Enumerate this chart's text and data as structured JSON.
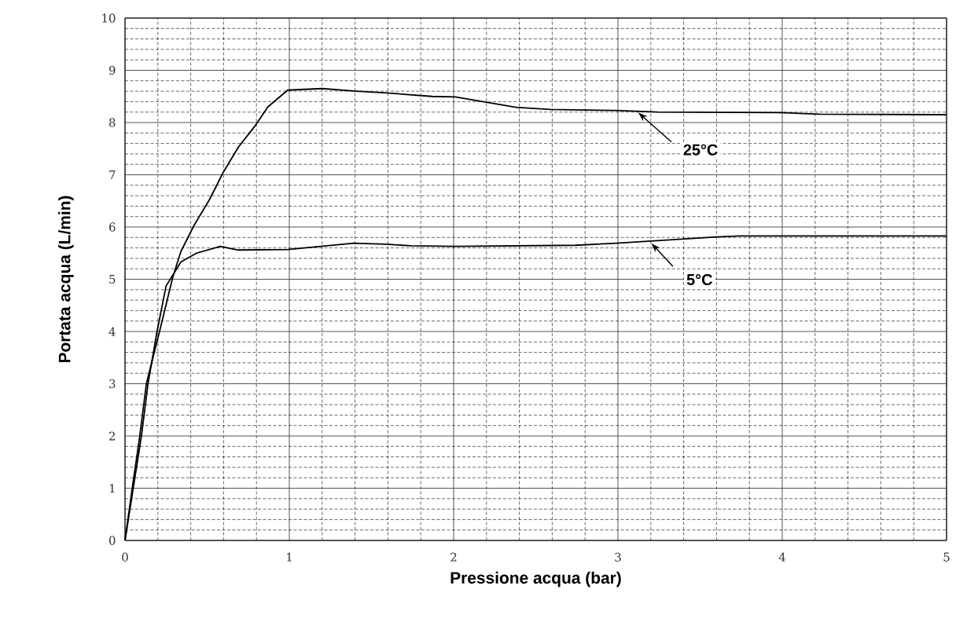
{
  "chart_data": {
    "type": "line",
    "xlabel": "Pressione acqua (bar)",
    "ylabel": "Portata acqua (L/min)",
    "xlim": [
      0,
      5
    ],
    "ylim": [
      0,
      10
    ],
    "xticks": [
      0,
      1,
      2,
      3,
      4,
      5
    ],
    "yticks": [
      0,
      1,
      2,
      3,
      4,
      5,
      6,
      7,
      8,
      9,
      10
    ],
    "grid": true,
    "marker": "none",
    "line_style": "solid",
    "series": [
      {
        "color": "#000000",
        "x": [
          0,
          0.044,
          0.09,
          0.13,
          0.21,
          0.29,
          0.34,
          0.42,
          0.515,
          0.595,
          0.69,
          0.79,
          0.87,
          0.99,
          1.2,
          1.41,
          1.58,
          1.87,
          2.01,
          2.38,
          2.59,
          2.99,
          3.24,
          3.99,
          4.23,
          5.0
        ],
        "values": [
          0,
          1,
          2,
          3,
          4,
          5.03,
          5.53,
          6.03,
          6.53,
          7.03,
          7.53,
          7.93,
          8.3,
          8.62,
          8.65,
          8.6,
          8.57,
          8.5,
          8.49,
          8.29,
          8.25,
          8.23,
          8.2,
          8.19,
          8.16,
          8.15
        ]
      },
      {
        "color": "#000000",
        "x": [
          0,
          0.05,
          0.1,
          0.14,
          0.195,
          0.25,
          0.34,
          0.435,
          0.58,
          0.69,
          0.99,
          1.39,
          1.59,
          1.74,
          2.01,
          2.74,
          2.99,
          3.6,
          3.74,
          5.0
        ],
        "values": [
          0,
          1,
          2,
          3,
          4,
          4.87,
          5.33,
          5.5,
          5.63,
          5.56,
          5.57,
          5.69,
          5.67,
          5.64,
          5.63,
          5.65,
          5.69,
          5.81,
          5.83,
          5.83
        ]
      }
    ],
    "annotations": [
      {
        "text": "25°C",
        "x": 3.12,
        "y": 8.2
      },
      {
        "text": "5°C",
        "x": 3.2,
        "y": 5.7
      }
    ]
  }
}
